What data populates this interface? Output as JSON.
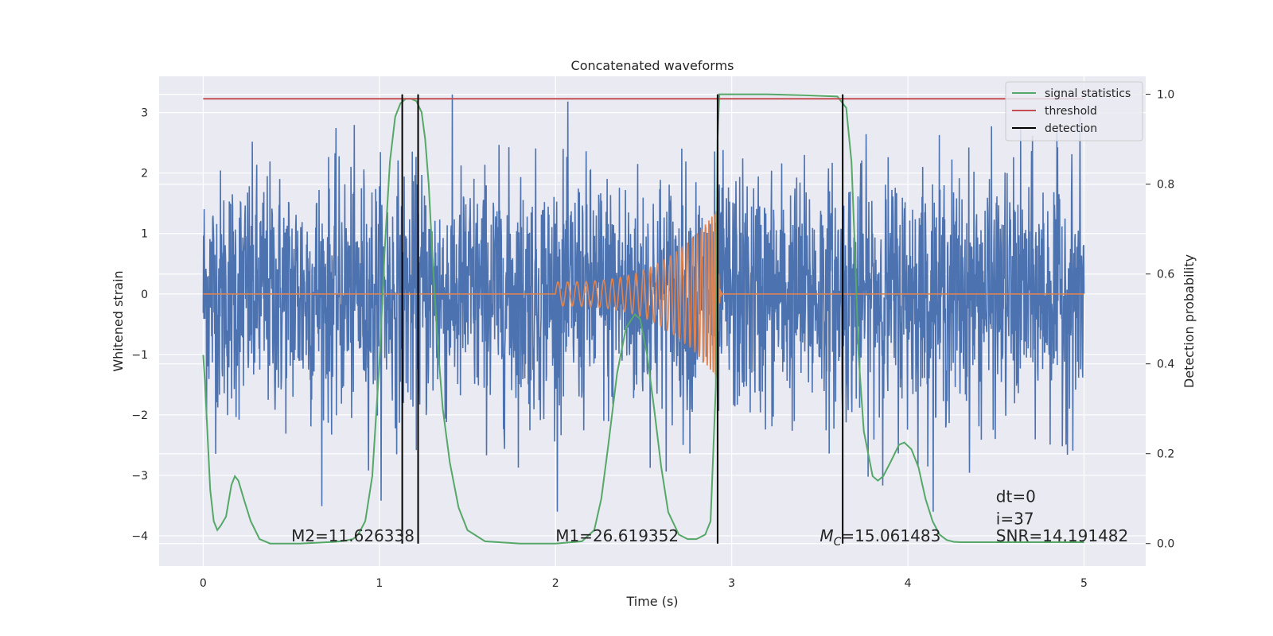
{
  "chart_data": {
    "type": "line",
    "title": "Concatenated waveforms",
    "xlabel": "Time (s)",
    "ylabel": "Whitened strain",
    "y2label": "Detection probability",
    "xlim": [
      -0.25,
      5.35
    ],
    "ylim": [
      -4.5,
      3.6
    ],
    "y2lim": [
      -0.05,
      1.04
    ],
    "xticks": [
      0,
      1,
      2,
      3,
      4,
      5
    ],
    "yticks": [
      -4,
      -3,
      -2,
      -1,
      0,
      1,
      2,
      3
    ],
    "y2ticks": [
      0.0,
      0.2,
      0.4,
      0.6,
      0.8,
      1.0
    ],
    "xtick_labels": [
      "0",
      "1",
      "2",
      "3",
      "4",
      "5"
    ],
    "ytick_labels": [
      "−4",
      "−3",
      "−2",
      "−1",
      "0",
      "1",
      "2",
      "3"
    ],
    "y2tick_labels": [
      "0.0",
      "0.2",
      "0.4",
      "0.6",
      "0.8",
      "1.0"
    ],
    "grid": true,
    "legend_position": "top-right",
    "colors": {
      "background": "#eaeaf2",
      "grid": "#ffffff",
      "strain": "#4c72b0",
      "template": "#dd8452",
      "signal_statistics": "#55a868",
      "threshold": "#c44e52",
      "detection": "#000000"
    },
    "strain": {
      "x_range": [
        0,
        5
      ],
      "typical_abs": 1.4,
      "peak_abs": 3.6
    },
    "template": {
      "x_start": 2.0,
      "x_merger": 2.92,
      "x_end": 2.95,
      "amplitude_start": 0.2,
      "amplitude_peak": 1.4
    },
    "series": [
      {
        "name": "signal statistics",
        "axis": "right",
        "x": [
          0.0,
          0.01,
          0.02,
          0.04,
          0.06,
          0.08,
          0.1,
          0.13,
          0.16,
          0.18,
          0.2,
          0.23,
          0.27,
          0.32,
          0.38,
          0.45,
          0.55,
          0.65,
          0.75,
          0.8,
          0.85,
          0.88,
          0.92,
          0.96,
          1.0,
          1.03,
          1.06,
          1.09,
          1.12,
          1.15,
          1.18,
          1.21,
          1.24,
          1.26,
          1.28,
          1.3,
          1.33,
          1.36,
          1.4,
          1.45,
          1.5,
          1.6,
          1.8,
          2.0,
          2.15,
          2.22,
          2.26,
          2.3,
          2.35,
          2.4,
          2.45,
          2.48,
          2.52,
          2.56,
          2.6,
          2.64,
          2.7,
          2.75,
          2.8,
          2.85,
          2.88,
          2.91,
          2.92,
          2.93,
          2.95,
          3.0,
          3.2,
          3.4,
          3.6,
          3.65,
          3.68,
          3.7,
          3.72,
          3.75,
          3.8,
          3.83,
          3.86,
          3.9,
          3.95,
          3.98,
          4.02,
          4.06,
          4.1,
          4.14,
          4.18,
          4.22,
          4.26,
          4.3,
          4.5,
          5.0
        ],
        "values": [
          0.42,
          0.36,
          0.28,
          0.12,
          0.05,
          0.03,
          0.04,
          0.06,
          0.13,
          0.15,
          0.14,
          0.1,
          0.05,
          0.01,
          0.0,
          0.0,
          0.0,
          0.002,
          0.004,
          0.006,
          0.01,
          0.02,
          0.05,
          0.15,
          0.4,
          0.65,
          0.85,
          0.95,
          0.98,
          0.99,
          0.99,
          0.985,
          0.96,
          0.9,
          0.8,
          0.65,
          0.45,
          0.3,
          0.18,
          0.08,
          0.03,
          0.005,
          0.0,
          0.0,
          0.005,
          0.03,
          0.1,
          0.22,
          0.38,
          0.48,
          0.51,
          0.5,
          0.42,
          0.3,
          0.17,
          0.07,
          0.02,
          0.01,
          0.01,
          0.02,
          0.05,
          0.35,
          0.9,
          1.0,
          1.0,
          1.0,
          1.0,
          0.998,
          0.995,
          0.97,
          0.85,
          0.65,
          0.42,
          0.25,
          0.15,
          0.14,
          0.15,
          0.18,
          0.22,
          0.225,
          0.21,
          0.17,
          0.1,
          0.05,
          0.02,
          0.008,
          0.004,
          0.003,
          0.003,
          0.003
        ]
      },
      {
        "name": "threshold",
        "axis": "right",
        "x": [
          0,
          5
        ],
        "values": [
          0.99,
          0.99
        ]
      },
      {
        "name": "detection",
        "axis": "right",
        "type": "vlines",
        "x": [
          1.13,
          1.22,
          2.92,
          3.63
        ],
        "y_range": [
          0.0,
          1.0
        ]
      }
    ],
    "annotations": [
      {
        "text": "M2=11.626338",
        "x": 0.5,
        "y": -4.0
      },
      {
        "text": "M1=26.619352",
        "x": 2.0,
        "y": -4.0
      },
      {
        "text": "=15.061483",
        "x": 3.5,
        "y": -4.0,
        "symbol": "M",
        "subscript": "C"
      },
      {
        "text": "dt=0",
        "x": 4.5,
        "y": -3.35
      },
      {
        "text": "i=37",
        "x": 4.5,
        "y": -3.72
      },
      {
        "text": "SNR=14.191482",
        "x": 4.5,
        "y": -4.0
      }
    ]
  }
}
